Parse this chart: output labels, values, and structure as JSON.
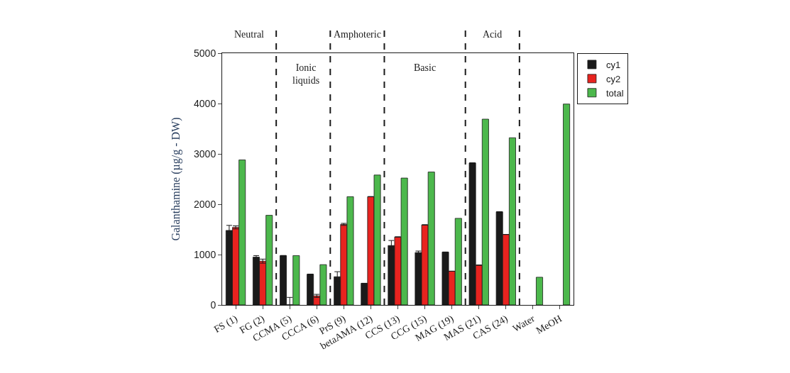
{
  "chart_data": {
    "type": "bar",
    "ylabel": "Galanthamine (µg/g - DW)",
    "categories": [
      "FS (1)",
      "FG (2)",
      "CCMA (5)",
      "CCCA (6)",
      "PrS (9)",
      "betaAMA (12)",
      "CCS (13)",
      "CCG (15)",
      "MAG (19)",
      "MAS (21)",
      "CAS (24)",
      "Water",
      "MeOH"
    ],
    "series": [
      {
        "name": "cy1",
        "color": "#1a1a1a",
        "values": [
          1480,
          950,
          980,
          610,
          560,
          430,
          1180,
          1040,
          1050,
          2820,
          1850,
          null,
          null
        ],
        "errors": [
          100,
          30,
          null,
          null,
          100,
          null,
          100,
          30,
          null,
          null,
          null,
          null,
          null
        ]
      },
      {
        "name": "cy2",
        "color": "#e8231f",
        "values": [
          1540,
          870,
          0,
          180,
          1600,
          2150,
          1350,
          1590,
          670,
          790,
          1400,
          null,
          null
        ],
        "errors": [
          30,
          40,
          [
            0,
            150
          ],
          30,
          20,
          null,
          null,
          null,
          null,
          null,
          null,
          null,
          null
        ]
      },
      {
        "name": "total",
        "color": "#4cb84c",
        "values": [
          2880,
          1780,
          980,
          800,
          2150,
          2580,
          2520,
          2640,
          1720,
          3690,
          3320,
          550,
          3990
        ]
      }
    ],
    "ylim": [
      0,
      5000
    ],
    "yticks": [
      0,
      1000,
      2000,
      3000,
      4000,
      5000
    ],
    "annotations": [
      "Neutral",
      "Ionic\nliquids",
      "Amphoteric",
      "Basic",
      "Acid"
    ],
    "legend": "top right"
  }
}
